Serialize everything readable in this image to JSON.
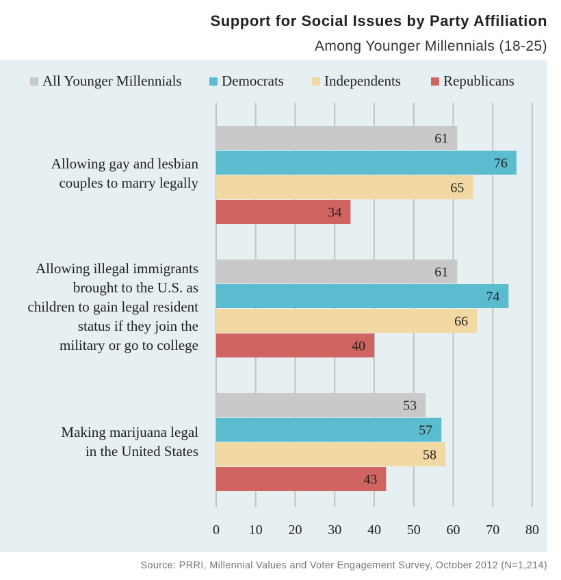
{
  "chart_data": {
    "type": "bar",
    "orientation": "horizontal",
    "title": "Support for Social Issues by Party Affiliation",
    "subtitle": "Among Younger Millennials (18-25)",
    "categories": [
      {
        "lines": [
          "Allowing gay and lesbian",
          "couples to marry legally"
        ]
      },
      {
        "lines": [
          "Allowing illegal immigrants",
          "brought to the U.S. as",
          "children to gain legal resident",
          "status if they join the",
          "military or go to college"
        ]
      },
      {
        "lines": [
          "Making marijuana legal",
          "in the United States"
        ]
      }
    ],
    "series": [
      {
        "name": "All Younger Millennials",
        "color": "#c9c9c9",
        "values": [
          61,
          61,
          53
        ]
      },
      {
        "name": "Democrats",
        "color": "#5bbcd0",
        "values": [
          76,
          74,
          57
        ]
      },
      {
        "name": "Independents",
        "color": "#f2d9a3",
        "values": [
          65,
          66,
          58
        ]
      },
      {
        "name": "Republicans",
        "color": "#d06460",
        "values": [
          34,
          40,
          43
        ]
      }
    ],
    "xlim": [
      0,
      80
    ],
    "xticks": [
      "0",
      "10",
      "20",
      "30",
      "40",
      "50",
      "60",
      "70",
      "80"
    ],
    "grid": true,
    "legend_position": "top"
  },
  "source": "Source: PRRI, Millennial Values and Voter Engagement Survey, October 2012 (N=1,214)"
}
